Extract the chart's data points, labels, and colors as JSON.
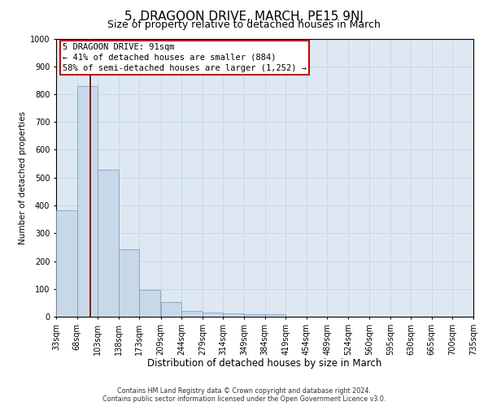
{
  "title": "5, DRAGOON DRIVE, MARCH, PE15 9NJ",
  "subtitle": "Size of property relative to detached houses in March",
  "xlabel": "Distribution of detached houses by size in March",
  "ylabel": "Number of detached properties",
  "bin_edges": [
    33,
    68,
    103,
    138,
    173,
    209,
    244,
    279,
    314,
    349,
    384,
    419,
    454,
    489,
    524,
    560,
    595,
    630,
    665,
    700,
    735
  ],
  "bar_heights": [
    383,
    829,
    529,
    243,
    95,
    53,
    20,
    15,
    11,
    8,
    10,
    0,
    0,
    0,
    0,
    0,
    0,
    0,
    0,
    0
  ],
  "bar_color": "#c8d8e8",
  "bar_edge_color": "#7098b8",
  "property_size": 91,
  "vline_color": "#8b0000",
  "annotation_line1": "5 DRAGOON DRIVE: 91sqm",
  "annotation_line2": "← 41% of detached houses are smaller (884)",
  "annotation_line3": "58% of semi-detached houses are larger (1,252) →",
  "annotation_box_facecolor": "#ffffff",
  "annotation_box_edgecolor": "#cc0000",
  "ylim": [
    0,
    1000
  ],
  "yticks": [
    0,
    100,
    200,
    300,
    400,
    500,
    600,
    700,
    800,
    900,
    1000
  ],
  "grid_color": "#c8d8e8",
  "plot_bg_color": "#dde8f2",
  "footer_line1": "Contains HM Land Registry data © Crown copyright and database right 2024.",
  "footer_line2": "Contains public sector information licensed under the Open Government Licence v3.0.",
  "title_fontsize": 11,
  "subtitle_fontsize": 9,
  "xlabel_fontsize": 8.5,
  "ylabel_fontsize": 7.5,
  "tick_fontsize": 7,
  "annot_fontsize": 7.5,
  "footer_fontsize": 5.8
}
